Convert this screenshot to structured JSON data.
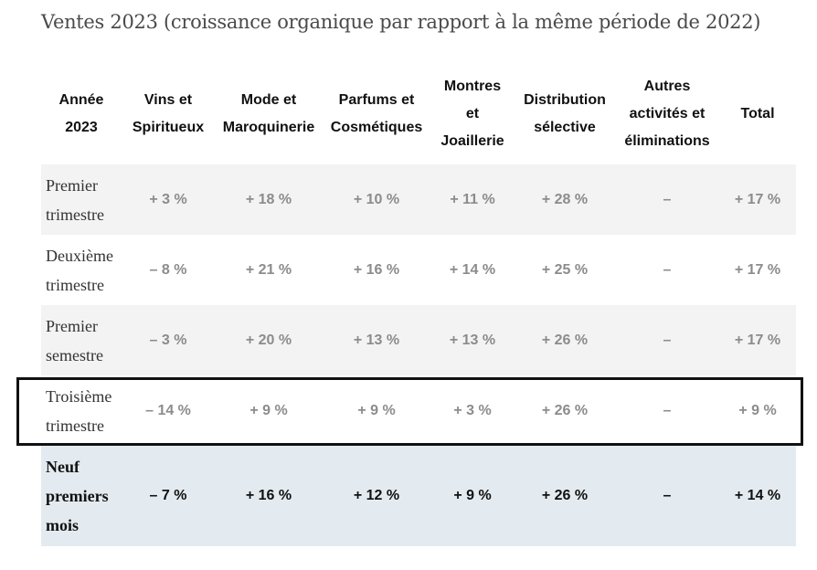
{
  "title": "Ventes 2023 (croissance organique par rapport à la même période de 2022)",
  "table": {
    "headers": [
      "Année\n2023",
      "Vins et\nSpiritueux",
      "Mode et\nMaroquinerie",
      "Parfums et\nCosmétiques",
      "Montres\net\nJoaillerie",
      "Distribution\nsélective",
      "Autres\nactivités et\néliminations",
      "Total"
    ],
    "rows": [
      {
        "label": "Premier\ntrimestre",
        "values": [
          "+ 3 %",
          "+ 18 %",
          "+ 10 %",
          "+ 11 %",
          "+ 28 %",
          "–",
          "+ 17 %"
        ]
      },
      {
        "label": "Deuxième\ntrimestre",
        "values": [
          "– 8 %",
          "+ 21 %",
          "+ 16 %",
          "+ 14 %",
          "+ 25 %",
          "–",
          "+ 17 %"
        ]
      },
      {
        "label": "Premier\nsemestre",
        "values": [
          "– 3 %",
          "+ 20 %",
          "+ 13 %",
          "+ 13 %",
          "+ 26 %",
          "–",
          "+ 17 %"
        ]
      },
      {
        "label": "Troisième\ntrimestre",
        "values": [
          "– 14 %",
          "+ 9 %",
          "+ 9 %",
          "+ 3 %",
          "+ 26 %",
          "–",
          "+ 9 %"
        ]
      },
      {
        "label": "Neuf\npremiers\nmois",
        "values": [
          "– 7 %",
          "+ 16 %",
          "+ 12 %",
          "+ 9 %",
          "+ 26 %",
          "–",
          "+ 14 %"
        ]
      }
    ]
  },
  "colors": {
    "row_shade": "#f3f3f3",
    "total_row": "#e4ebf0",
    "highlight_border": "#111111"
  }
}
